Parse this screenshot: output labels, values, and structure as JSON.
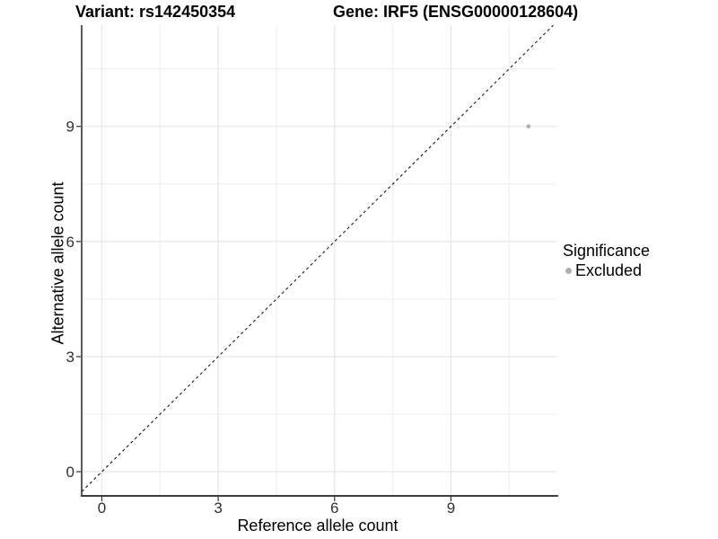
{
  "chart_data": {
    "type": "scatter",
    "title_variant": "Variant: rs142450354",
    "title_gene": "Gene: IRF5 (ENSG00000128604)",
    "xlabel": "Reference allele count",
    "ylabel": "Alternative allele count",
    "x_ticks": [
      0,
      3,
      6,
      9
    ],
    "y_ticks": [
      0,
      3,
      6,
      9
    ],
    "x_minor_breaks": [
      1.5,
      4.5,
      7.5,
      10.5
    ],
    "y_minor_breaks": [
      1.5,
      4.5,
      7.5,
      10.5
    ],
    "xlim": [
      -0.52,
      11.72
    ],
    "ylim": [
      -0.63,
      11.64
    ],
    "grid": "major+minor",
    "legend_position": "right",
    "reference_line": {
      "equation": "y = x",
      "style": "dashed",
      "color": "#1a1a1a"
    },
    "points": [
      {
        "x": 11,
        "y": 9,
        "series": "Excluded"
      }
    ],
    "point_style": {
      "color": "#b0b0b0",
      "radius": 2.3
    },
    "legend": {
      "title": "Significance",
      "items": [
        {
          "label": "Excluded",
          "color": "#b0b0b0"
        }
      ]
    },
    "colors": {
      "grid_major": "#e4e4e4",
      "grid_minor": "#efefef",
      "axis_line": "#3f3f3f",
      "tick_mark": "#333333",
      "tick_label": "#303030",
      "title": "#000000"
    }
  }
}
